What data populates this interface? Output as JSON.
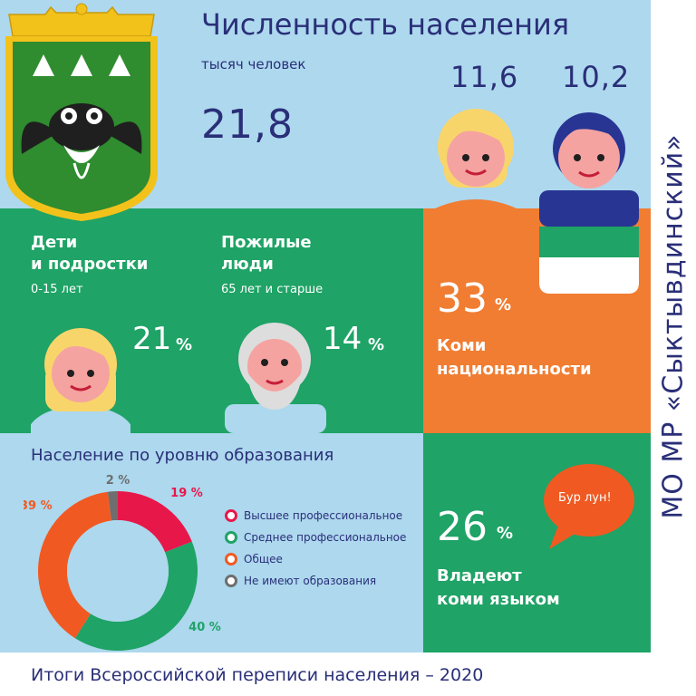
{
  "title": "Численность населения",
  "subtitle": "тысяч человек",
  "total": "21,8",
  "female": "11,6",
  "male": "10,2",
  "children": {
    "label_line1": "Дети",
    "label_line2": "и подростки",
    "age": "0-15 лет",
    "value": "21",
    "unit": "%"
  },
  "elderly": {
    "label_line1": "Пожилые",
    "label_line2": "люди",
    "age": "65 лет и старше",
    "value": "14",
    "unit": "%"
  },
  "komi_nationality": {
    "value": "33",
    "unit": "%",
    "label_line1": "Коми",
    "label_line2": "национальности"
  },
  "komi_language": {
    "value": "26",
    "unit": "%",
    "label_line1": "Владеют",
    "label_line2": "коми языком",
    "bubble": "Бур лун!"
  },
  "side_title": "МО МР «Сыктывдинский»",
  "footer": "Итоги Всероссийской переписи населения – 2020",
  "colors": {
    "navy": "#2a2f78",
    "green": "#1fa366",
    "orange": "#f07d32",
    "lightblue": "#add8ee",
    "red": "#e8174a",
    "darkorange": "#f05a22",
    "gray": "#6e6e6e"
  },
  "chart_data": {
    "type": "pie",
    "title": "Население по уровню образования",
    "categories": [
      "Высшее профессиональное",
      "Среднее профессиональное",
      "Общее",
      "Не имеют образования"
    ],
    "values": [
      19,
      40,
      39,
      2
    ],
    "value_labels": [
      "19 %",
      "40 %",
      "39 %",
      "2 %"
    ],
    "colors": [
      "#e8174a",
      "#1fa366",
      "#f05a22",
      "#6e6e6e"
    ],
    "legend": "right"
  }
}
